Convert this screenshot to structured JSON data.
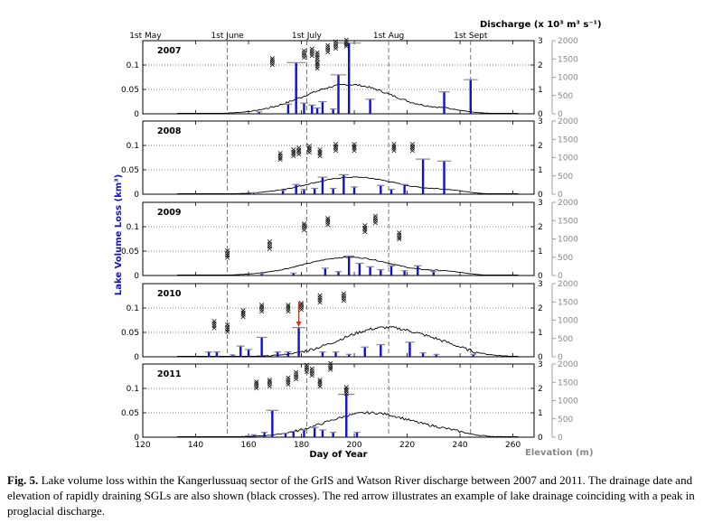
{
  "chart_data": {
    "type": "multi-panel bar + line",
    "panels": [
      {
        "year": "2007",
        "discharge_peak_day": 198,
        "lake_drainages": [
          {
            "day": 164,
            "loss": 0.004
          },
          {
            "day": 175,
            "loss": 0.02
          },
          {
            "day": 178,
            "loss": 0.105
          },
          {
            "day": 181,
            "loss": 0.022
          },
          {
            "day": 184,
            "loss": 0.018
          },
          {
            "day": 186,
            "loss": 0.012
          },
          {
            "day": 188,
            "loss": 0.025
          },
          {
            "day": 192,
            "loss": 0.01
          },
          {
            "day": 194,
            "loss": 0.08
          },
          {
            "day": 198,
            "loss": 0.145
          },
          {
            "day": 206,
            "loss": 0.03
          },
          {
            "day": 234,
            "loss": 0.045
          },
          {
            "day": 244,
            "loss": 0.07
          }
        ],
        "crosses": [
          {
            "day": 169,
            "elev": 1450
          },
          {
            "day": 181,
            "elev": 1650
          },
          {
            "day": 184,
            "elev": 1700
          },
          {
            "day": 186,
            "elev": 1600
          },
          {
            "day": 186,
            "elev": 1350
          },
          {
            "day": 190,
            "elev": 1800
          },
          {
            "day": 193,
            "elev": 1900
          },
          {
            "day": 197,
            "elev": 1950
          }
        ]
      },
      {
        "year": "2008",
        "discharge_peak_day": 200,
        "lake_drainages": [
          {
            "day": 162,
            "loss": 0.003
          },
          {
            "day": 173,
            "loss": 0.008
          },
          {
            "day": 178,
            "loss": 0.02
          },
          {
            "day": 181,
            "loss": 0.01
          },
          {
            "day": 185,
            "loss": 0.012
          },
          {
            "day": 188,
            "loss": 0.035
          },
          {
            "day": 192,
            "loss": 0.012
          },
          {
            "day": 196,
            "loss": 0.04
          },
          {
            "day": 200,
            "loss": 0.015
          },
          {
            "day": 210,
            "loss": 0.018
          },
          {
            "day": 214,
            "loss": 0.01
          },
          {
            "day": 219,
            "loss": 0.02
          },
          {
            "day": 226,
            "loss": 0.072
          },
          {
            "day": 234,
            "loss": 0.068
          }
        ],
        "crosses": [
          {
            "day": 172,
            "elev": 1050
          },
          {
            "day": 177,
            "elev": 1150
          },
          {
            "day": 179,
            "elev": 1200
          },
          {
            "day": 183,
            "elev": 1250
          },
          {
            "day": 187,
            "elev": 1150
          },
          {
            "day": 193,
            "elev": 1300
          },
          {
            "day": 200,
            "elev": 1300
          },
          {
            "day": 215,
            "elev": 1300
          },
          {
            "day": 222,
            "elev": 1300
          }
        ]
      },
      {
        "year": "2009",
        "discharge_peak_day": 198,
        "lake_drainages": [
          {
            "day": 165,
            "loss": 0.004
          },
          {
            "day": 177,
            "loss": 0.005
          },
          {
            "day": 189,
            "loss": 0.015
          },
          {
            "day": 194,
            "loss": 0.008
          },
          {
            "day": 198,
            "loss": 0.04
          },
          {
            "day": 202,
            "loss": 0.025
          },
          {
            "day": 206,
            "loss": 0.018
          },
          {
            "day": 210,
            "loss": 0.012
          },
          {
            "day": 214,
            "loss": 0.02
          },
          {
            "day": 219,
            "loss": 0.01
          },
          {
            "day": 224,
            "loss": 0.02
          },
          {
            "day": 230,
            "loss": 0.008
          }
        ],
        "crosses": [
          {
            "day": 152,
            "elev": 600
          },
          {
            "day": 168,
            "elev": 850
          },
          {
            "day": 181,
            "elev": 1350
          },
          {
            "day": 190,
            "elev": 1500
          },
          {
            "day": 204,
            "elev": 1300
          },
          {
            "day": 208,
            "elev": 1550
          },
          {
            "day": 217,
            "elev": 1100
          }
        ]
      },
      {
        "year": "2010",
        "discharge_peak_day": 212,
        "lake_drainages": [
          {
            "day": 145,
            "loss": 0.01
          },
          {
            "day": 148,
            "loss": 0.01
          },
          {
            "day": 154,
            "loss": 0.004
          },
          {
            "day": 157,
            "loss": 0.022
          },
          {
            "day": 160,
            "loss": 0.015
          },
          {
            "day": 165,
            "loss": 0.04
          },
          {
            "day": 171,
            "loss": 0.01
          },
          {
            "day": 175,
            "loss": 0.01
          },
          {
            "day": 179,
            "loss": 0.06
          },
          {
            "day": 188,
            "loss": 0.01
          },
          {
            "day": 193,
            "loss": 0.01
          },
          {
            "day": 198,
            "loss": 0.005
          },
          {
            "day": 204,
            "loss": 0.02
          },
          {
            "day": 210,
            "loss": 0.025
          },
          {
            "day": 221,
            "loss": 0.03
          },
          {
            "day": 226,
            "loss": 0.008
          },
          {
            "day": 231,
            "loss": 0.005
          },
          {
            "day": 245,
            "loss": 0.005
          }
        ],
        "crosses": [
          {
            "day": 147,
            "elev": 900
          },
          {
            "day": 152,
            "elev": 800
          },
          {
            "day": 158,
            "elev": 1200
          },
          {
            "day": 165,
            "elev": 1350
          },
          {
            "day": 175,
            "elev": 1350
          },
          {
            "day": 180,
            "elev": 1400
          },
          {
            "day": 187,
            "elev": 1600
          },
          {
            "day": 196,
            "elev": 1650
          }
        ],
        "red_arrow_day": 179
      },
      {
        "year": "2011",
        "discharge_peak_day": 206,
        "lake_drainages": [
          {
            "day": 162,
            "loss": 0.005
          },
          {
            "day": 166,
            "loss": 0.01
          },
          {
            "day": 169,
            "loss": 0.055
          },
          {
            "day": 174,
            "loss": 0.008
          },
          {
            "day": 177,
            "loss": 0.012
          },
          {
            "day": 181,
            "loss": 0.015
          },
          {
            "day": 185,
            "loss": 0.02
          },
          {
            "day": 188,
            "loss": 0.015
          },
          {
            "day": 192,
            "loss": 0.01
          },
          {
            "day": 197,
            "loss": 0.088
          },
          {
            "day": 201,
            "loss": 0.01
          }
        ],
        "crosses": [
          {
            "day": 163,
            "elev": 1450
          },
          {
            "day": 168,
            "elev": 1500
          },
          {
            "day": 175,
            "elev": 1550
          },
          {
            "day": 178,
            "elev": 1700
          },
          {
            "day": 182,
            "elev": 1900
          },
          {
            "day": 184,
            "elev": 1800
          },
          {
            "day": 187,
            "elev": 1500
          },
          {
            "day": 191,
            "elev": 1950
          },
          {
            "day": 197,
            "elev": 1300
          }
        ]
      }
    ],
    "x": {
      "label": "Day of Year",
      "lim": [
        120,
        268
      ],
      "ticks": [
        "120",
        "140",
        "160",
        "180",
        "200",
        "220",
        "240",
        "260"
      ]
    },
    "y_left": {
      "label": "Lake Volume Loss (km³)",
      "lim": [
        0,
        0.15
      ],
      "ticks": [
        "0",
        "0.05",
        "0.1"
      ]
    },
    "y_right_discharge": {
      "label": "Discharge (x 10³ m³ s⁻¹)",
      "lim": [
        0,
        3
      ],
      "ticks": [
        "0",
        "1",
        "2",
        "3"
      ]
    },
    "y_right_elevation": {
      "label": "Elevation (m)",
      "lim": [
        0,
        2000
      ],
      "ticks": [
        "0",
        "500",
        "1000",
        "1500",
        "2000"
      ]
    },
    "month_markers": [
      {
        "label": "1st May",
        "day": 121
      },
      {
        "label": "1st June",
        "day": 152
      },
      {
        "label": "1st July",
        "day": 182
      },
      {
        "label": "1st Aug",
        "day": 213
      },
      {
        "label": "1st Sept",
        "day": 244
      }
    ],
    "colors": {
      "lake_bars": "#1010d0",
      "discharge": "#000000",
      "crosses": "#000000",
      "arrow": "#e03010",
      "elevation_axis": "#888888",
      "grid": "#888888"
    }
  },
  "caption": {
    "label": "Fig. 5.",
    "text": "Lake volume loss within the Kangerlussuaq sector of the GrIS and Watson River discharge between 2007 and 2011. The drainage date and elevation of rapidly draining SGLs are also shown (black crosses). The red arrow illustrates an example of lake drainage coinciding with a peak in proglacial discharge."
  }
}
